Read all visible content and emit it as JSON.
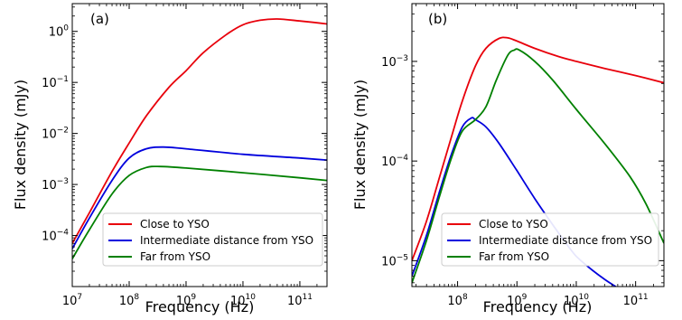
{
  "figure": {
    "panels": [
      "(a)",
      "(b)"
    ],
    "xlabel": "Frequency (Hz)",
    "ylabel": "Flux density (mJy)"
  },
  "legend_labels": [
    "Close to YSO",
    "Intermediate distance from YSO",
    "Far from YSO"
  ],
  "colors": {
    "close": "#e8000b",
    "intermediate": "#0000dd",
    "far": "#008000"
  },
  "chart_data": [
    {
      "type": "line",
      "panel": "(a)",
      "xscale": "log",
      "yscale": "log",
      "xlim": [
        10000000.0,
        300000000000.0
      ],
      "ylim": [
        1e-05,
        3.5
      ],
      "xlabel": "Frequency (Hz)",
      "ylabel": "Flux density (mJy)",
      "xticks": [
        {
          "base": "10",
          "exp": "7",
          "v": 10000000.0
        },
        {
          "base": "10",
          "exp": "8",
          "v": 100000000.0
        },
        {
          "base": "10",
          "exp": "9",
          "v": 1000000000.0
        },
        {
          "base": "10",
          "exp": "10",
          "v": 10000000000.0
        },
        {
          "base": "10",
          "exp": "11",
          "v": 100000000000.0
        }
      ],
      "yticks": [
        {
          "base": "10",
          "exp": "−4",
          "v": 0.0001
        },
        {
          "base": "10",
          "exp": "−3",
          "v": 0.001
        },
        {
          "base": "10",
          "exp": "−2",
          "v": 0.01
        },
        {
          "base": "10",
          "exp": "−1",
          "v": 0.1
        },
        {
          "base": "10",
          "exp": "0",
          "v": 1
        }
      ],
      "legend_position": "lower right",
      "series": [
        {
          "name": "Close to YSO",
          "color": "#e8000b",
          "x": [
            10000000.0,
            20000000.0,
            50000000.0,
            100000000.0,
            200000000.0,
            500000000.0,
            1000000000.0,
            2000000000.0,
            5000000000.0,
            10000000000.0,
            20000000000.0,
            40000000000.0,
            100000000000.0,
            300000000000.0
          ],
          "y": [
            7e-05,
            0.00028,
            0.0018,
            0.0065,
            0.022,
            0.08,
            0.17,
            0.38,
            0.85,
            1.35,
            1.65,
            1.75,
            1.6,
            1.4
          ]
        },
        {
          "name": "Intermediate distance from YSO",
          "color": "#0000dd",
          "x": [
            10000000.0,
            20000000.0,
            50000000.0,
            100000000.0,
            200000000.0,
            400000000.0,
            1000000000.0,
            10000000000.0,
            100000000000.0,
            300000000000.0
          ],
          "y": [
            5.5e-05,
            0.00022,
            0.0012,
            0.0033,
            0.005,
            0.0054,
            0.005,
            0.0039,
            0.0033,
            0.003
          ]
        },
        {
          "name": "Far from YSO",
          "color": "#008000",
          "x": [
            10000000.0,
            20000000.0,
            50000000.0,
            100000000.0,
            200000000.0,
            350000000.0,
            1000000000.0,
            10000000000.0,
            100000000000.0,
            300000000000.0
          ],
          "y": [
            3.5e-05,
            0.00013,
            0.00065,
            0.0015,
            0.00215,
            0.00225,
            0.0021,
            0.0017,
            0.00135,
            0.0012
          ]
        }
      ]
    },
    {
      "type": "line",
      "panel": "(b)",
      "xscale": "log",
      "yscale": "log",
      "xlim": [
        17000000.0,
        300000000000.0
      ],
      "ylim": [
        5.5e-06,
        0.0038
      ],
      "xlabel": "Frequency (Hz)",
      "ylabel": "Flux density (mJy)",
      "xticks": [
        {
          "base": "10",
          "exp": "8",
          "v": 100000000.0
        },
        {
          "base": "10",
          "exp": "9",
          "v": 1000000000.0
        },
        {
          "base": "10",
          "exp": "10",
          "v": 10000000000.0
        },
        {
          "base": "10",
          "exp": "11",
          "v": 100000000000.0
        }
      ],
      "yticks": [
        {
          "base": "10",
          "exp": "−5",
          "v": 1e-05
        },
        {
          "base": "10",
          "exp": "−4",
          "v": 0.0001
        },
        {
          "base": "10",
          "exp": "−3",
          "v": 0.001
        }
      ],
      "legend_position": "lower right",
      "series": [
        {
          "name": "Close to YSO",
          "color": "#e8000b",
          "x": [
            17000000.0,
            30000000.0,
            50000000.0,
            80000000.0,
            120000000.0,
            200000000.0,
            300000000.0,
            500000000.0,
            700000000.0,
            1000000000.0,
            2000000000.0,
            5000000000.0,
            10000000000.0,
            30000000000.0,
            100000000000.0,
            300000000000.0
          ],
          "y": [
            1e-05,
            2.5e-05,
            7e-05,
            0.00018,
            0.0004,
            0.0009,
            0.00135,
            0.0017,
            0.00172,
            0.0016,
            0.00135,
            0.00112,
            0.001,
            0.00085,
            0.00072,
            0.00061
          ]
        },
        {
          "name": "Intermediate distance from YSO",
          "color": "#0000dd",
          "x": [
            17000000.0,
            30000000.0,
            50000000.0,
            80000000.0,
            120000000.0,
            170000000.0,
            200000000.0,
            300000000.0,
            500000000.0,
            1000000000.0,
            2000000000.0,
            4000000000.0,
            8000000000.0,
            12000000000.0,
            30000000000.0,
            60000000000.0
          ],
          "y": [
            7e-06,
            1.8e-05,
            5e-05,
            0.00012,
            0.00022,
            0.00027,
            0.00026,
            0.00022,
            0.00015,
            8e-05,
            4.2e-05,
            2.3e-05,
            1.3e-05,
            1e-05,
            6.5e-06,
            5e-06
          ]
        },
        {
          "name": "Far from YSO",
          "color": "#008000",
          "x": [
            17000000.0,
            30000000.0,
            50000000.0,
            80000000.0,
            120000000.0,
            200000000.0,
            300000000.0,
            450000000.0,
            700000000.0,
            900000000.0,
            1100000000.0,
            2000000000.0,
            4000000000.0,
            10000000000.0,
            30000000000.0,
            80000000000.0,
            150000000000.0,
            300000000000.0
          ],
          "y": [
            6e-06,
            1.6e-05,
            4.5e-05,
            0.00011,
            0.0002,
            0.00026,
            0.00035,
            0.00065,
            0.00115,
            0.0013,
            0.0013,
            0.001,
            0.00065,
            0.00033,
            0.00015,
            7e-05,
            3.7e-05,
            1.5e-05
          ]
        }
      ]
    }
  ]
}
